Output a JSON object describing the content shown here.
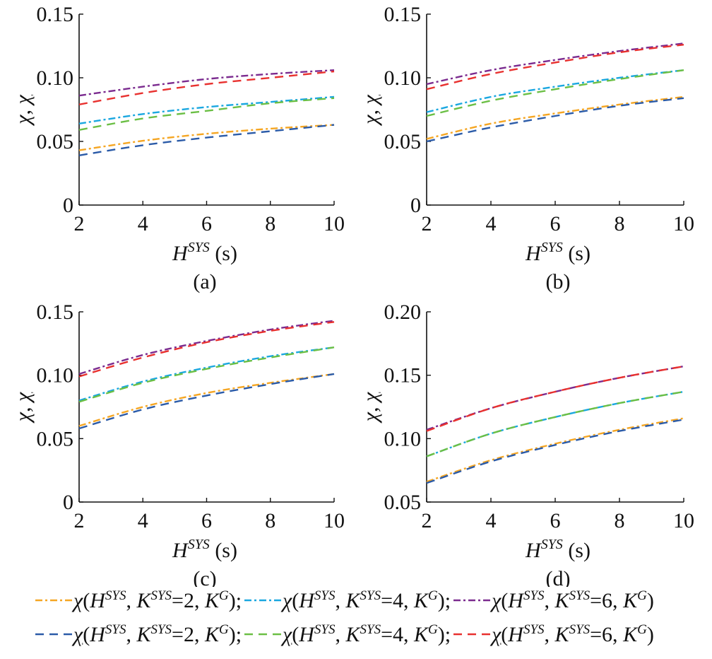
{
  "chart_data": [
    {
      "type": "line",
      "panel": "(a)",
      "xlabel_base": "H",
      "xlabel_sup": "SYS",
      "xlabel_unit": " (s)",
      "ylabel": "χ, χ",
      "xlim": [
        2,
        10
      ],
      "ylim": [
        0,
        0.15
      ],
      "xticks": [
        "2",
        "4",
        "6",
        "8",
        "10"
      ],
      "yticks": [
        "0",
        "0.05",
        "0.10",
        "0.15"
      ],
      "x": [
        2,
        4,
        6,
        8,
        10
      ],
      "series": [
        {
          "key": "chi2",
          "values": [
            0.043,
            0.0505,
            0.056,
            0.06,
            0.063
          ]
        },
        {
          "key": "chi4",
          "values": [
            0.064,
            0.0715,
            0.077,
            0.081,
            0.085
          ]
        },
        {
          "key": "chi6",
          "values": [
            0.086,
            0.093,
            0.099,
            0.103,
            0.106
          ]
        },
        {
          "key": "lchi2",
          "values": [
            0.039,
            0.047,
            0.053,
            0.058,
            0.063
          ]
        },
        {
          "key": "lchi4",
          "values": [
            0.059,
            0.068,
            0.074,
            0.08,
            0.084
          ]
        },
        {
          "key": "lchi6",
          "values": [
            0.079,
            0.088,
            0.095,
            0.1,
            0.105
          ]
        }
      ]
    },
    {
      "type": "line",
      "panel": "(b)",
      "xlabel_base": "H",
      "xlabel_sup": "SYS",
      "xlabel_unit": " (s)",
      "ylabel": "χ, χ",
      "xlim": [
        2,
        10
      ],
      "ylim": [
        0,
        0.15
      ],
      "xticks": [
        "2",
        "4",
        "6",
        "8",
        "10"
      ],
      "yticks": [
        "0",
        "0.05",
        "0.10",
        "0.15"
      ],
      "x": [
        2,
        4,
        6,
        8,
        10
      ],
      "series": [
        {
          "key": "chi2",
          "values": [
            0.052,
            0.064,
            0.072,
            0.079,
            0.085
          ]
        },
        {
          "key": "chi4",
          "values": [
            0.073,
            0.085,
            0.093,
            0.1,
            0.106
          ]
        },
        {
          "key": "chi6",
          "values": [
            0.095,
            0.106,
            0.114,
            0.121,
            0.127
          ]
        },
        {
          "key": "lchi2",
          "values": [
            0.05,
            0.061,
            0.07,
            0.078,
            0.084
          ]
        },
        {
          "key": "lchi4",
          "values": [
            0.07,
            0.082,
            0.091,
            0.099,
            0.106
          ]
        },
        {
          "key": "lchi6",
          "values": [
            0.091,
            0.103,
            0.112,
            0.12,
            0.126
          ]
        }
      ]
    },
    {
      "type": "line",
      "panel": "(c)",
      "xlabel_base": "H",
      "xlabel_sup": "SYS",
      "xlabel_unit": " (s)",
      "ylabel": "χ, χ",
      "xlim": [
        2,
        10
      ],
      "ylim": [
        0,
        0.15
      ],
      "xticks": [
        "2",
        "4",
        "6",
        "8",
        "10"
      ],
      "yticks": [
        "0",
        "0.05",
        "0.10",
        "0.15"
      ],
      "x": [
        2,
        4,
        6,
        8,
        10
      ],
      "series": [
        {
          "key": "chi2",
          "values": [
            0.06,
            0.075,
            0.086,
            0.094,
            0.101
          ]
        },
        {
          "key": "chi4",
          "values": [
            0.08,
            0.095,
            0.106,
            0.115,
            0.122
          ]
        },
        {
          "key": "chi6",
          "values": [
            0.101,
            0.116,
            0.127,
            0.136,
            0.143
          ]
        },
        {
          "key": "lchi2",
          "values": [
            0.058,
            0.073,
            0.084,
            0.093,
            0.101
          ]
        },
        {
          "key": "lchi4",
          "values": [
            0.079,
            0.094,
            0.105,
            0.114,
            0.122
          ]
        },
        {
          "key": "lchi6",
          "values": [
            0.099,
            0.114,
            0.126,
            0.135,
            0.142
          ]
        }
      ]
    },
    {
      "type": "line",
      "panel": "(d)",
      "xlabel_base": "H",
      "xlabel_sup": "SYS",
      "xlabel_unit": " (s)",
      "ylabel": "χ, χ",
      "xlim": [
        2,
        10
      ],
      "ylim": [
        0.05,
        0.2
      ],
      "xticks": [
        "2",
        "4",
        "6",
        "8",
        "10"
      ],
      "yticks": [
        "0.05",
        "0.10",
        "0.15",
        "0.20"
      ],
      "x": [
        2,
        4,
        6,
        8,
        10
      ],
      "series": [
        {
          "key": "chi2",
          "values": [
            0.066,
            0.083,
            0.096,
            0.107,
            0.116
          ]
        },
        {
          "key": "chi4",
          "values": [
            0.086,
            0.104,
            0.117,
            0.128,
            0.137
          ]
        },
        {
          "key": "chi6",
          "values": [
            0.107,
            0.124,
            0.137,
            0.148,
            0.157
          ]
        },
        {
          "key": "lchi2",
          "values": [
            0.065,
            0.082,
            0.095,
            0.106,
            0.115
          ]
        },
        {
          "key": "lchi4",
          "values": [
            0.086,
            0.104,
            0.117,
            0.128,
            0.137
          ]
        },
        {
          "key": "lchi6",
          "values": [
            0.106,
            0.124,
            0.137,
            0.148,
            0.157
          ]
        }
      ]
    }
  ],
  "series_styles": {
    "chi2": {
      "color": "#F5A623",
      "dash": "dashdot"
    },
    "chi4": {
      "color": "#1AA7E0",
      "dash": "dashdot"
    },
    "chi6": {
      "color": "#7B2B8F",
      "dash": "dashdot"
    },
    "lchi2": {
      "color": "#2B5BA8",
      "dash": "dashed"
    },
    "lchi4": {
      "color": "#6BBF45",
      "dash": "dashed"
    },
    "lchi6": {
      "color": "#E8312F",
      "dash": "dashed"
    }
  },
  "legend": {
    "rows": [
      [
        {
          "key": "chi2",
          "symbol": "χ",
          "under": false,
          "arg1": "(H",
          "sup1": "SYS",
          "arg2": ", K",
          "sup2": "SYS",
          "arg3": "=2, K",
          "sup3": "G",
          "arg4": ");"
        },
        {
          "key": "chi4",
          "symbol": "χ",
          "under": false,
          "arg1": "(H",
          "sup1": "SYS",
          "arg2": ", K",
          "sup2": "SYS",
          "arg3": "=4, K",
          "sup3": "G",
          "arg4": ");"
        },
        {
          "key": "chi6",
          "symbol": "χ",
          "under": false,
          "arg1": "(H",
          "sup1": "SYS",
          "arg2": ", K",
          "sup2": "SYS",
          "arg3": "=6, K",
          "sup3": "G",
          "arg4": ")"
        }
      ],
      [
        {
          "key": "lchi2",
          "symbol": "χ",
          "under": true,
          "arg1": "(H",
          "sup1": "SYS",
          "arg2": ", K",
          "sup2": "SYS",
          "arg3": "=2, K",
          "sup3": "G",
          "arg4": ");"
        },
        {
          "key": "lchi4",
          "symbol": "χ",
          "under": true,
          "arg1": "(H",
          "sup1": "SYS",
          "arg2": ", K",
          "sup2": "SYS",
          "arg3": "=4, K",
          "sup3": "G",
          "arg4": ");"
        },
        {
          "key": "lchi6",
          "symbol": "χ",
          "under": true,
          "arg1": "(H",
          "sup1": "SYS",
          "arg2": ", K",
          "sup2": "SYS",
          "arg3": "=6, K",
          "sup3": "G",
          "arg4": ")"
        }
      ]
    ]
  }
}
